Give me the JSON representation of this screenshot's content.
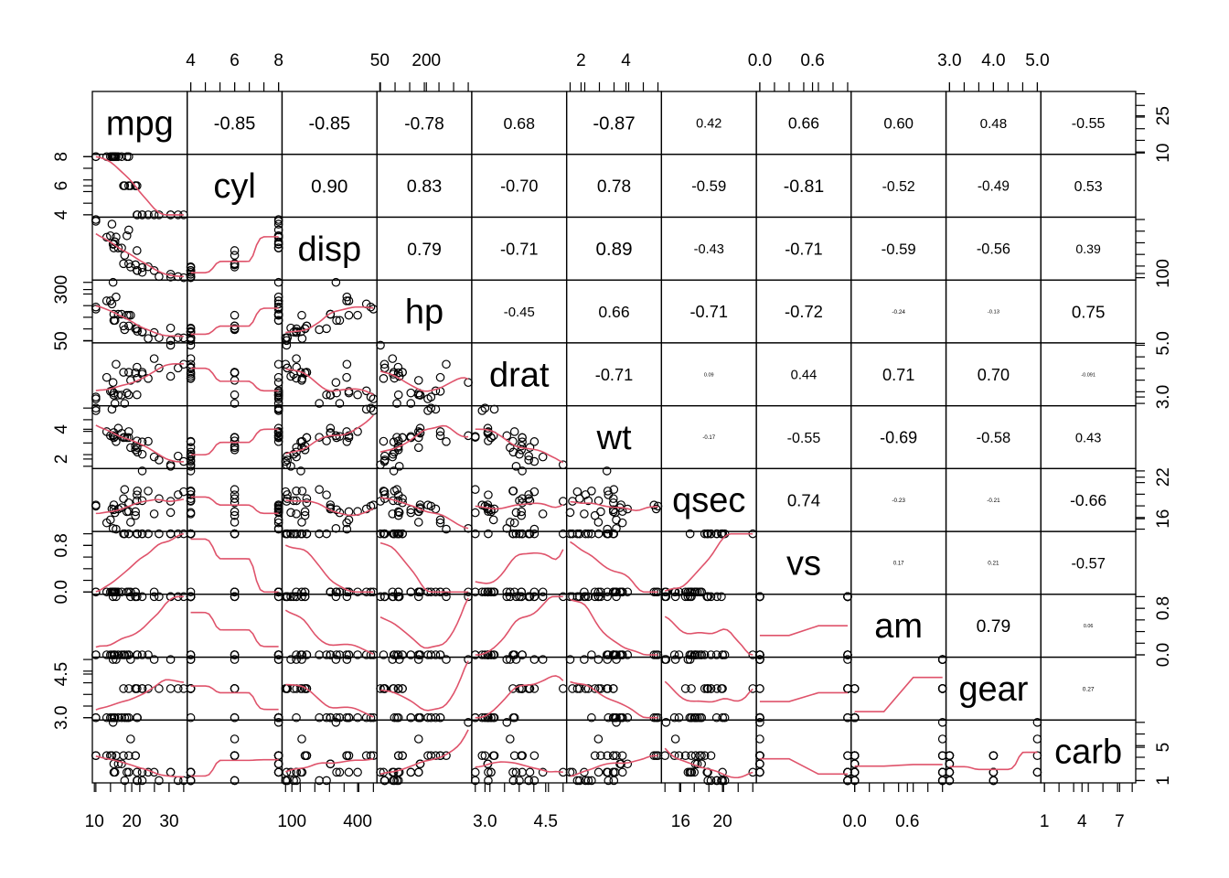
{
  "chart_data": {
    "type": "scatter-matrix",
    "title": "",
    "variables": [
      "mpg",
      "cyl",
      "disp",
      "hp",
      "drat",
      "wt",
      "qsec",
      "vs",
      "am",
      "gear",
      "carb"
    ],
    "ranges": {
      "mpg": [
        10.4,
        33.9
      ],
      "cyl": [
        4,
        8
      ],
      "disp": [
        71.1,
        472
      ],
      "hp": [
        52,
        335
      ],
      "drat": [
        2.76,
        4.93
      ],
      "wt": [
        1.513,
        5.424
      ],
      "qsec": [
        14.5,
        22.9
      ],
      "vs": [
        0,
        1
      ],
      "am": [
        0,
        1
      ],
      "gear": [
        3,
        5
      ],
      "carb": [
        1,
        8
      ]
    },
    "tick_labels": {
      "mpg": [
        "10",
        "20",
        "30"
      ],
      "cyl": [
        "4",
        "6",
        "8"
      ],
      "disp": [
        "100",
        "400"
      ],
      "hp": [
        "50",
        "200"
      ],
      "drat": [
        "3.0",
        "4.5"
      ],
      "wt": [
        "2",
        "4"
      ],
      "qsec": [
        "16",
        "20"
      ],
      "vs": [
        "0.0",
        "0.6"
      ],
      "am": [
        "0.0",
        "0.6"
      ],
      "gear": [
        "3.0",
        "4.0",
        "5.0"
      ],
      "carb": [
        "1",
        "4",
        "7"
      ]
    },
    "left_axis_labels": {
      "cyl": [
        "4",
        "6",
        "8"
      ],
      "hp": [
        "50",
        "300"
      ],
      "wt": [
        "2",
        "4"
      ],
      "vs": [
        "0.0",
        "0.8"
      ],
      "gear": [
        "3.0",
        "4.5"
      ]
    },
    "right_axis_labels": {
      "mpg": [
        "10",
        "25"
      ],
      "disp": [
        "100"
      ],
      "drat": [
        "3.0",
        "5.0"
      ],
      "qsec": [
        "16",
        "22"
      ],
      "am": [
        "0.0",
        "0.8"
      ],
      "carb": [
        "1",
        "5"
      ]
    },
    "correlations": [
      [
        "",
        "-0.85",
        "-0.85",
        "-0.78",
        "0.68",
        "-0.87",
        "0.42",
        "0.66",
        "0.60",
        "0.48",
        "-0.55"
      ],
      [
        "",
        "",
        "0.90",
        "0.83",
        "-0.70",
        "0.78",
        "-0.59",
        "-0.81",
        "-0.52",
        "-0.49",
        "0.53"
      ],
      [
        "",
        "",
        "",
        "0.79",
        "-0.71",
        "0.89",
        "-0.43",
        "-0.71",
        "-0.59",
        "-0.56",
        "0.39"
      ],
      [
        "",
        "",
        "",
        "",
        "-0.45",
        "0.66",
        "-0.71",
        "-0.72",
        "-0.24",
        "-0.13",
        "0.75"
      ],
      [
        "",
        "",
        "",
        "",
        "",
        "-0.71",
        "0.09",
        "0.44",
        "0.71",
        "0.70",
        "-0.091"
      ],
      [
        "",
        "",
        "",
        "",
        "",
        "",
        "-0.17",
        "-0.55",
        "-0.69",
        "-0.58",
        "0.43"
      ],
      [
        "",
        "",
        "",
        "",
        "",
        "",
        "",
        "0.74",
        "-0.23",
        "-0.21",
        "-0.66"
      ],
      [
        "",
        "",
        "",
        "",
        "",
        "",
        "",
        "",
        "0.17",
        "0.21",
        "-0.57"
      ],
      [
        "",
        "",
        "",
        "",
        "",
        "",
        "",
        "",
        "",
        "0.79",
        "0.06"
      ],
      [
        "",
        "",
        "",
        "",
        "",
        "",
        "",
        "",
        "",
        "",
        "0.27"
      ],
      [
        "",
        "",
        "",
        "",
        "",
        "",
        "",
        "",
        "",
        "",
        ""
      ]
    ],
    "observations": {
      "mpg": [
        21.0,
        21.0,
        22.8,
        21.4,
        18.7,
        18.1,
        14.3,
        24.4,
        22.8,
        19.2,
        17.8,
        16.4,
        17.3,
        15.2,
        10.4,
        10.4,
        14.7,
        32.4,
        30.4,
        33.9,
        21.5,
        15.5,
        15.2,
        13.3,
        19.2,
        27.3,
        26.0,
        30.4,
        15.8,
        19.7,
        15.0,
        21.4
      ],
      "cyl": [
        6,
        6,
        4,
        6,
        8,
        6,
        8,
        4,
        4,
        6,
        6,
        8,
        8,
        8,
        8,
        8,
        8,
        4,
        4,
        4,
        4,
        8,
        8,
        8,
        8,
        4,
        4,
        4,
        8,
        6,
        8,
        4
      ],
      "disp": [
        160,
        160,
        108,
        258,
        360,
        225,
        360,
        146.7,
        140.8,
        167.6,
        167.6,
        275.8,
        275.8,
        275.8,
        472,
        460,
        440,
        78.7,
        75.7,
        71.1,
        120.1,
        318,
        304,
        350,
        400,
        79,
        120.3,
        95.1,
        351,
        145,
        301,
        121
      ],
      "hp": [
        110,
        110,
        93,
        110,
        175,
        105,
        245,
        62,
        95,
        123,
        123,
        180,
        180,
        180,
        205,
        215,
        230,
        66,
        52,
        65,
        97,
        150,
        150,
        245,
        175,
        66,
        91,
        113,
        264,
        175,
        335,
        109
      ],
      "drat": [
        3.9,
        3.9,
        3.85,
        3.08,
        3.15,
        2.76,
        3.21,
        3.69,
        3.92,
        3.92,
        3.92,
        3.07,
        3.07,
        3.07,
        2.93,
        3.0,
        3.23,
        4.08,
        4.93,
        4.22,
        3.7,
        2.76,
        3.15,
        3.73,
        3.08,
        4.08,
        4.43,
        3.77,
        4.22,
        3.62,
        3.54,
        4.11
      ],
      "wt": [
        2.62,
        2.875,
        2.32,
        3.215,
        3.44,
        3.46,
        3.57,
        3.19,
        3.15,
        3.44,
        3.44,
        4.07,
        3.73,
        3.78,
        5.25,
        5.424,
        5.345,
        2.2,
        1.615,
        1.835,
        2.465,
        3.52,
        3.435,
        3.84,
        3.845,
        1.935,
        2.14,
        1.513,
        3.17,
        2.77,
        3.57,
        2.78
      ],
      "qsec": [
        16.46,
        17.02,
        18.61,
        19.44,
        17.02,
        20.22,
        15.84,
        20.0,
        22.9,
        18.3,
        18.9,
        17.4,
        17.6,
        18.0,
        17.98,
        17.82,
        17.42,
        19.47,
        18.52,
        19.9,
        20.01,
        16.87,
        17.3,
        15.41,
        17.05,
        18.9,
        16.7,
        16.9,
        14.5,
        15.5,
        14.6,
        18.6
      ],
      "vs": [
        0,
        0,
        1,
        1,
        0,
        1,
        0,
        1,
        1,
        1,
        1,
        0,
        0,
        0,
        0,
        0,
        0,
        1,
        1,
        1,
        1,
        0,
        0,
        0,
        0,
        1,
        0,
        1,
        0,
        0,
        0,
        1
      ],
      "am": [
        1,
        1,
        1,
        0,
        0,
        0,
        0,
        0,
        0,
        0,
        0,
        0,
        0,
        0,
        0,
        0,
        0,
        1,
        1,
        1,
        0,
        0,
        0,
        0,
        0,
        1,
        1,
        1,
        1,
        1,
        1,
        1
      ],
      "gear": [
        4,
        4,
        4,
        3,
        3,
        3,
        3,
        4,
        4,
        4,
        4,
        3,
        3,
        3,
        3,
        3,
        3,
        4,
        4,
        4,
        3,
        3,
        3,
        3,
        3,
        4,
        5,
        5,
        5,
        5,
        5,
        4
      ],
      "carb": [
        4,
        4,
        1,
        1,
        2,
        1,
        4,
        2,
        2,
        4,
        4,
        3,
        3,
        3,
        4,
        4,
        4,
        1,
        2,
        1,
        1,
        2,
        2,
        4,
        2,
        1,
        2,
        2,
        4,
        6,
        8,
        2
      ]
    },
    "smoother_color": "#DF536B",
    "point_color": "#000000",
    "line_color": "#000000",
    "background_color": "#FFFFFF"
  }
}
